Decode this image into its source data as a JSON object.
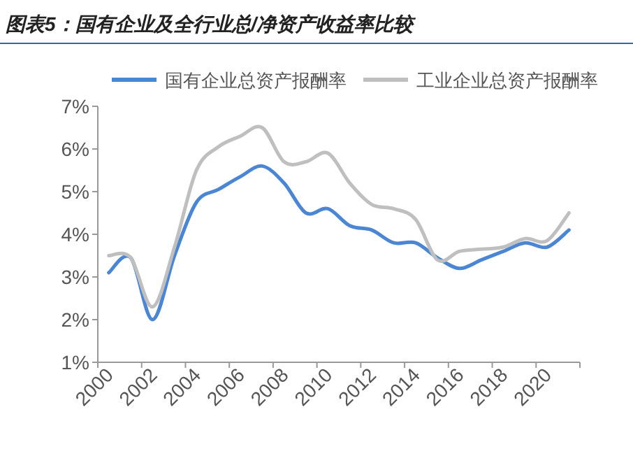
{
  "chart_data": {
    "type": "line",
    "title": "图表5：国有企业及全行业总/净资产收益率比较",
    "categories": [
      "2000",
      null,
      "2002",
      null,
      "2004",
      null,
      "2006",
      null,
      "2008",
      null,
      "2010",
      null,
      "2012",
      null,
      "2014",
      null,
      "2016",
      null,
      "2018",
      null,
      "2020",
      null
    ],
    "series": [
      {
        "name": "国有企业总资产报酬率",
        "color": "#4a86d4",
        "values": [
          3.1,
          3.45,
          2.0,
          3.5,
          4.75,
          5.05,
          5.35,
          5.6,
          5.2,
          4.5,
          4.6,
          4.2,
          4.1,
          3.8,
          3.8,
          3.45,
          3.2,
          3.4,
          3.6,
          3.8,
          3.7,
          4.1
        ]
      },
      {
        "name": "工业企业总资产报酬率",
        "color": "#bfbfbf",
        "values": [
          3.5,
          3.45,
          2.3,
          3.7,
          5.5,
          6.05,
          6.3,
          6.5,
          5.7,
          5.7,
          5.9,
          5.2,
          4.7,
          4.6,
          4.35,
          3.4,
          3.6,
          3.65,
          3.7,
          3.9,
          3.85,
          4.5
        ]
      }
    ],
    "ylim": [
      1,
      7
    ],
    "yticks": [
      {
        "value": 1,
        "label": "1%"
      },
      {
        "value": 2,
        "label": "2%"
      },
      {
        "value": 3,
        "label": "3%"
      },
      {
        "value": 4,
        "label": "4%"
      },
      {
        "value": 5,
        "label": "5%"
      },
      {
        "value": 6,
        "label": "6%"
      },
      {
        "value": 7,
        "label": "7%"
      }
    ],
    "legend": "top",
    "grid": false,
    "marker": "none",
    "line_style": "solid"
  }
}
